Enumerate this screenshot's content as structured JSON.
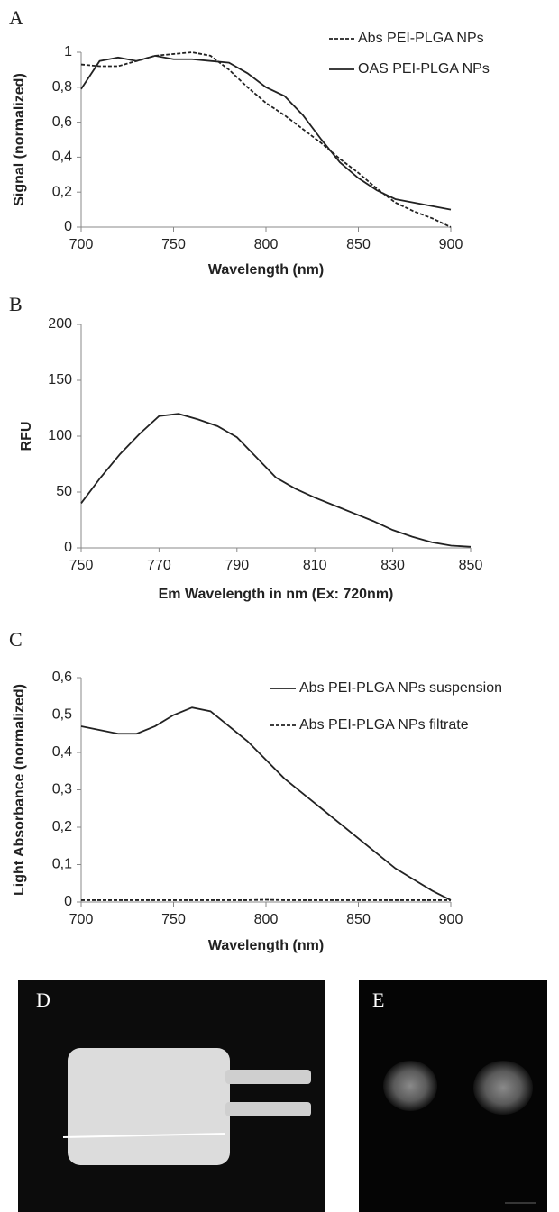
{
  "chart_data": [
    {
      "type": "line",
      "panel_label": "A",
      "x_label": "Wavelength (nm)",
      "y_label": "Signal (normalized)",
      "x": [
        700,
        710,
        720,
        730,
        740,
        750,
        760,
        770,
        780,
        790,
        800,
        810,
        820,
        830,
        840,
        850,
        860,
        870,
        880,
        890,
        900
      ],
      "series": [
        {
          "name": "Abs PEI-PLGA NPs",
          "color": "#222",
          "dashed": true,
          "values": [
            0.93,
            0.92,
            0.92,
            0.95,
            0.98,
            0.99,
            1.0,
            0.98,
            0.9,
            0.8,
            0.71,
            0.64,
            0.56,
            0.48,
            0.39,
            0.31,
            0.22,
            0.14,
            0.09,
            0.05,
            0.0
          ]
        },
        {
          "name": "OAS PEI-PLGA NPs",
          "color": "#222",
          "dashed": false,
          "values": [
            0.79,
            0.95,
            0.97,
            0.95,
            0.98,
            0.96,
            0.96,
            0.95,
            0.94,
            0.88,
            0.8,
            0.75,
            0.64,
            0.5,
            0.37,
            0.28,
            0.21,
            0.16,
            0.14,
            0.12,
            0.1
          ]
        }
      ],
      "xlim": [
        700,
        900
      ],
      "xticks": [
        700,
        750,
        800,
        850,
        900
      ],
      "ylim": [
        0,
        1
      ],
      "yticks": [
        0,
        {
          "value": 0.2,
          "label": "0,2"
        },
        {
          "value": 0.4,
          "label": "0,4"
        },
        {
          "value": 0.6,
          "label": "0,6"
        },
        {
          "value": 0.8,
          "label": "0,8"
        },
        1
      ],
      "legend": "top-right"
    },
    {
      "type": "line",
      "panel_label": "B",
      "x_label": "Em Wavelength in nm (Ex: 720nm)",
      "y_label": "RFU",
      "x": [
        750,
        755,
        760,
        765,
        770,
        775,
        780,
        785,
        790,
        795,
        800,
        805,
        810,
        815,
        820,
        825,
        830,
        835,
        840,
        845,
        850
      ],
      "values": [
        40,
        63,
        84,
        102,
        118,
        120,
        115,
        109,
        99,
        81,
        63,
        53,
        45,
        38,
        31,
        24,
        16,
        10,
        5,
        2,
        1
      ],
      "color": "#222",
      "xlim": [
        750,
        850
      ],
      "xticks": [
        750,
        770,
        790,
        810,
        830,
        850
      ],
      "ylim": [
        0,
        200
      ],
      "yticks": [
        0,
        50,
        100,
        150,
        200
      ]
    },
    {
      "type": "line",
      "panel_label": "C",
      "x_label": "Wavelength (nm)",
      "y_label": "Light Absorbance (normalized)",
      "x": [
        700,
        710,
        720,
        730,
        740,
        750,
        760,
        770,
        780,
        790,
        800,
        810,
        820,
        830,
        840,
        850,
        860,
        870,
        880,
        890,
        900
      ],
      "series": [
        {
          "name": "Abs PEI-PLGA NPs suspension",
          "color": "#222",
          "dashed": false,
          "values": [
            0.47,
            0.46,
            0.45,
            0.45,
            0.47,
            0.5,
            0.52,
            0.51,
            0.47,
            0.43,
            0.38,
            0.33,
            0.29,
            0.25,
            0.21,
            0.17,
            0.13,
            0.09,
            0.06,
            0.03,
            0.005
          ]
        },
        {
          "name": "Abs PEI-PLGA NPs filtrate",
          "color": "#222",
          "dashed": true,
          "values": [
            0.005,
            0.005,
            0.005,
            0.005,
            0.005,
            0.005,
            0.005,
            0.005,
            0.005,
            0.005,
            0.006,
            0.005,
            0.005,
            0.005,
            0.005,
            0.005,
            0.005,
            0.005,
            0.005,
            0.005,
            0.005
          ]
        }
      ],
      "xlim": [
        700,
        900
      ],
      "xticks": [
        700,
        750,
        800,
        850,
        900
      ],
      "ylim": [
        0,
        0.6
      ],
      "yticks": [
        0,
        {
          "value": 0.1,
          "label": "0,1"
        },
        {
          "value": 0.2,
          "label": "0,2"
        },
        {
          "value": 0.3,
          "label": "0,3"
        },
        {
          "value": 0.4,
          "label": "0,4"
        },
        {
          "value": 0.5,
          "label": "0,5"
        },
        {
          "value": 0.6,
          "label": "0,6"
        }
      ],
      "legend": "top-right"
    }
  ],
  "images": [
    {
      "label": "D"
    },
    {
      "label": "E"
    }
  ]
}
